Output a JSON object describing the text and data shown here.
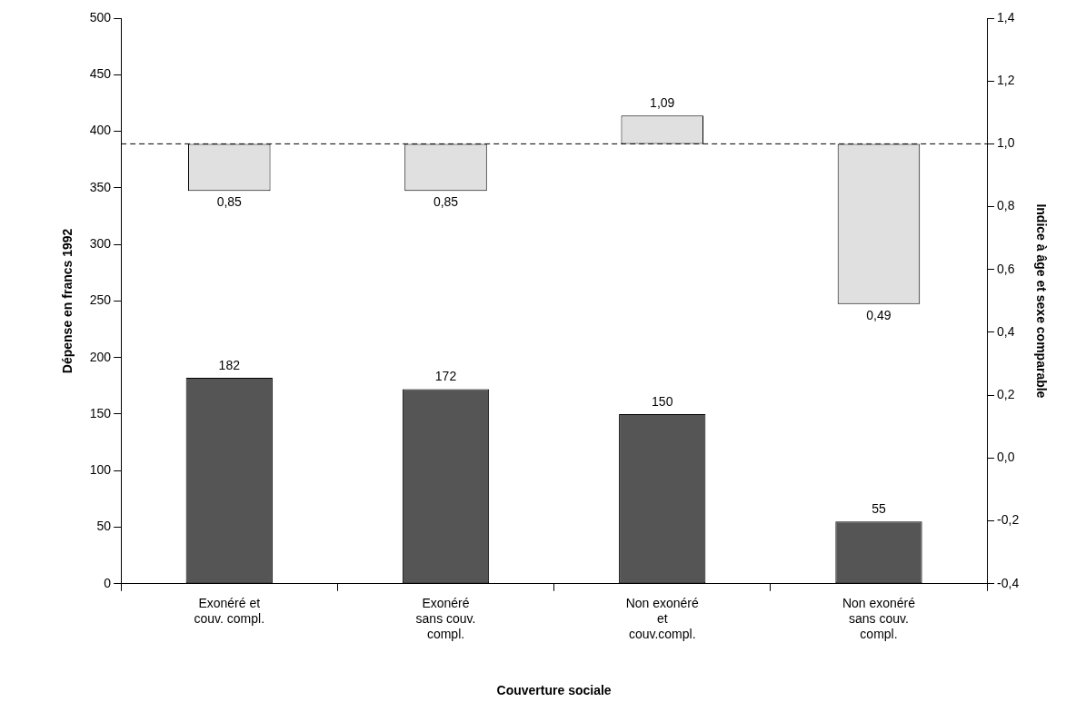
{
  "chart_data": {
    "type": "bar",
    "xlabel": "Couverture sociale",
    "ylabel": "Dépense en francs 1992",
    "y2label": "Indice à âge et sexe comparable",
    "categories": [
      "Exonéré et\ncouv. compl.",
      "Exonéré\nsans couv.\ncompl.",
      "Non exonéré\net\ncouv.compl.",
      "Non exonéré\nsans couv.\ncompl."
    ],
    "series": [
      {
        "color": "#555555",
        "values": [
          182,
          172,
          150,
          55
        ],
        "value_labels": [
          "182",
          "172",
          "150",
          "55"
        ]
      },
      {
        "axis": "y2",
        "color": "#e0e0e0",
        "base": [
          1.0,
          1.0,
          1.0,
          1.0
        ],
        "values": [
          -0.15,
          -0.15,
          0.09,
          -0.51
        ],
        "value_labels": [
          "0,85",
          "0,85",
          "1,09",
          "0,49"
        ]
      }
    ],
    "ylim": [
      0,
      500
    ],
    "yticks": [
      0,
      50,
      100,
      150,
      200,
      250,
      300,
      350,
      400,
      450,
      500
    ],
    "y2lim": [
      -0.4,
      1.4
    ],
    "y2ticks": [
      {
        "value": -0.4,
        "label": "-0,4"
      },
      {
        "value": -0.2,
        "label": "-0,2"
      },
      {
        "value": 0,
        "label": "0,0"
      },
      {
        "value": 0.2,
        "label": "0,2"
      },
      {
        "value": 0.4,
        "label": "0,4"
      },
      {
        "value": 0.6,
        "label": "0,6"
      },
      {
        "value": 0.8,
        "label": "0,8"
      },
      {
        "value": 1.0,
        "label": "1,0"
      },
      {
        "value": 1.2,
        "label": "1,2"
      },
      {
        "value": 1.4,
        "label": "1,4"
      }
    ],
    "ref_lines": [
      {
        "axis": "y2",
        "value": 1.0,
        "color": "#000000",
        "line_style": "dashed"
      }
    ],
    "grid": false,
    "legend": false
  }
}
